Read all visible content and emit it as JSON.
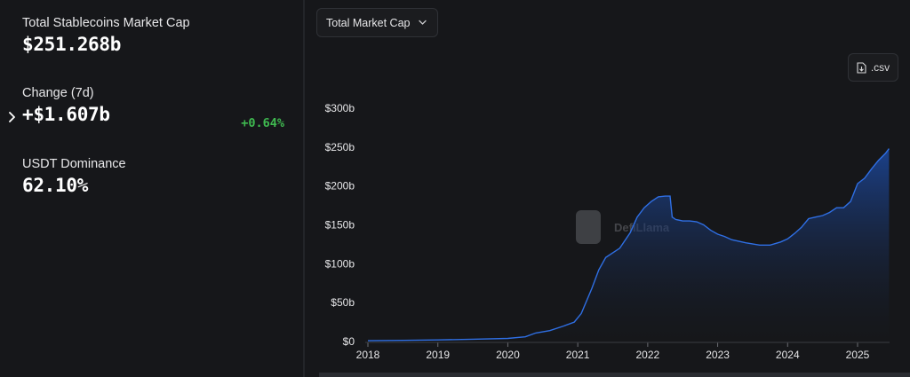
{
  "summary": {
    "market_cap_label": "Total Stablecoins Market Cap",
    "market_cap_value": "$251.268b",
    "change_label": "Change (7d)",
    "change_value": "+$1.607b",
    "change_percent": "+0.64%",
    "dominance_label": "USDT Dominance",
    "dominance_value": "62.10%"
  },
  "controls": {
    "metric_dropdown_label": "Total Market Cap",
    "csv_button_label": ".csv"
  },
  "watermark": {
    "text": "DefiLlama"
  },
  "colors": {
    "positive": "#3fb950",
    "line": "#2f6fe4",
    "fill": "#1d4fb0"
  },
  "icons": {
    "expand": "chevron-right-icon",
    "dropdown": "chevron-down-icon",
    "csv": "file-download-icon"
  },
  "chart_data": {
    "type": "area",
    "title": "",
    "xlabel": "",
    "ylabel": "",
    "ylim": [
      0,
      300
    ],
    "y_ticks": [
      0,
      50,
      100,
      150,
      200,
      250,
      300
    ],
    "y_tick_labels": [
      "$0",
      "$50b",
      "$100b",
      "$150b",
      "$200b",
      "$250b",
      "$300b"
    ],
    "x_ticks": [
      2018,
      2019,
      2020,
      2021,
      2022,
      2023,
      2024,
      2025
    ],
    "x_tick_labels": [
      "2018",
      "2019",
      "2020",
      "2021",
      "2022",
      "2023",
      "2024",
      "2025"
    ],
    "grid": false,
    "series": [
      {
        "x": [
          2018.0,
          2018.5,
          2019.0,
          2019.5,
          2020.0,
          2020.25,
          2020.4,
          2020.6,
          2020.8,
          2020.95,
          2021.05,
          2021.2,
          2021.3,
          2021.4,
          2021.6,
          2021.75,
          2021.85,
          2021.95,
          2022.05,
          2022.15,
          2022.25,
          2022.32,
          2022.35,
          2022.4,
          2022.5,
          2022.6,
          2022.7,
          2022.8,
          2022.9,
          2023.0,
          2023.1,
          2023.2,
          2023.3,
          2023.4,
          2023.6,
          2023.75,
          2023.9,
          2024.0,
          2024.1,
          2024.2,
          2024.3,
          2024.4,
          2024.5,
          2024.6,
          2024.7,
          2024.8,
          2024.9,
          2025.0,
          2025.1,
          2025.2,
          2025.3,
          2025.4,
          2025.45
        ],
        "y": [
          1,
          1.5,
          2,
          3,
          4,
          6,
          11,
          14,
          20,
          25,
          36,
          68,
          92,
          108,
          120,
          140,
          160,
          172,
          180,
          186,
          187,
          187,
          160,
          157,
          155,
          155,
          154,
          150,
          143,
          138,
          135,
          131,
          129,
          127,
          124,
          124,
          128,
          132,
          139,
          147,
          158,
          160,
          162,
          166,
          172,
          172,
          180,
          203,
          210,
          222,
          233,
          242,
          248
        ]
      }
    ]
  }
}
